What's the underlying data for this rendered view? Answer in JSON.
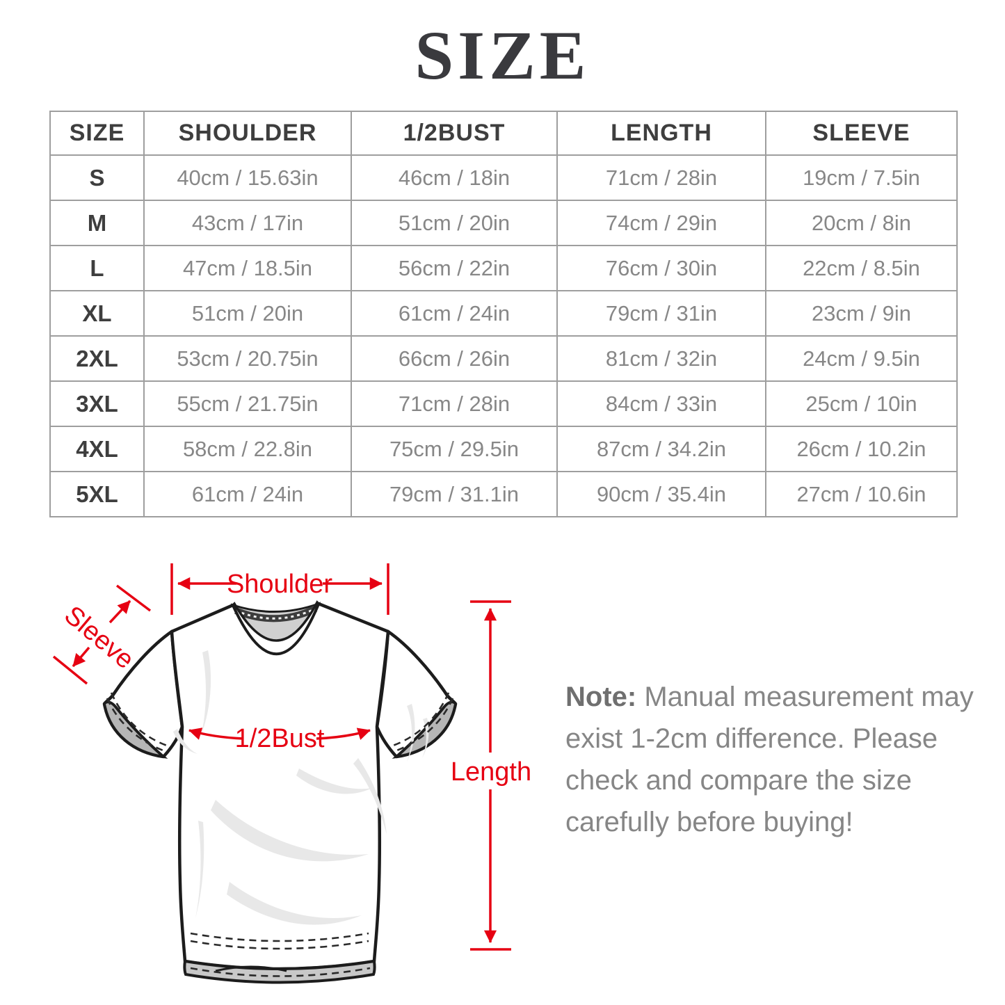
{
  "title": "SIZE",
  "table": {
    "headers": [
      "SIZE",
      "SHOULDER",
      "1/2BUST",
      "LENGTH",
      "SLEEVE"
    ],
    "rows": [
      [
        "S",
        "40cm / 15.63in",
        "46cm / 18in",
        "71cm / 28in",
        "19cm / 7.5in"
      ],
      [
        "M",
        "43cm / 17in",
        "51cm / 20in",
        "74cm / 29in",
        "20cm / 8in"
      ],
      [
        "L",
        "47cm / 18.5in",
        "56cm / 22in",
        "76cm / 30in",
        "22cm / 8.5in"
      ],
      [
        "XL",
        "51cm / 20in",
        "61cm / 24in",
        "79cm / 31in",
        "23cm / 9in"
      ],
      [
        "2XL",
        "53cm / 20.75in",
        "66cm / 26in",
        "81cm / 32in",
        "24cm / 9.5in"
      ],
      [
        "3XL",
        "55cm / 21.75in",
        "71cm / 28in",
        "84cm / 33in",
        "25cm / 10in"
      ],
      [
        "4XL",
        "58cm / 22.8in",
        "75cm / 29.5in",
        "87cm / 34.2in",
        "26cm / 10.2in"
      ],
      [
        "5XL",
        "61cm / 24in",
        "79cm / 31.1in",
        "90cm / 35.4in",
        "27cm / 10.6in"
      ]
    ]
  },
  "diagram": {
    "labels": {
      "shoulder": "Shoulder",
      "sleeve": "Sleeve",
      "half_bust": "1/2Bust",
      "length": "Length"
    },
    "annotation_color": "#e60012"
  },
  "note": {
    "prefix": "Note:",
    "lines": [
      "Manual measurement may",
      "exist 1-2cm difference. Please",
      "check and compare the size",
      "carefully before buying!"
    ]
  }
}
